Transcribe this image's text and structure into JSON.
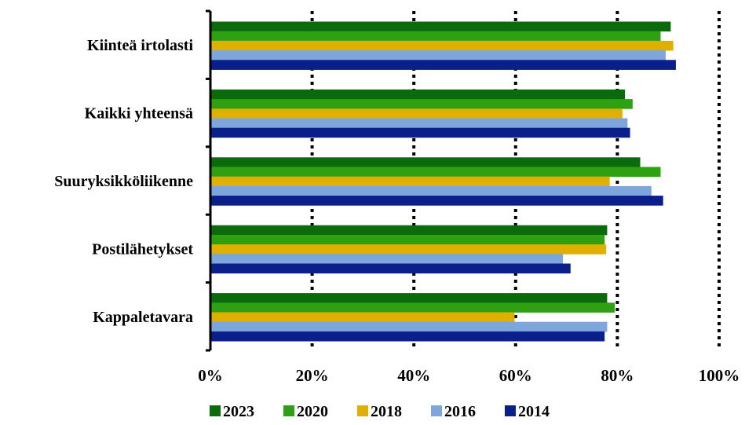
{
  "chart_data": {
    "type": "bar",
    "orientation": "horizontal",
    "categories": [
      "Kiinteä irtolasti",
      "Kaikki yhteensä",
      "Suuryksikköliikenne",
      "Postilähetykset",
      "Kappaletavara"
    ],
    "series": [
      {
        "name": "2023",
        "color": "#0b6a0b",
        "values": [
          90.5,
          81.5,
          84.5,
          78.0,
          78.0
        ]
      },
      {
        "name": "2020",
        "color": "#2ea012",
        "values": [
          88.5,
          83.0,
          88.5,
          77.5,
          79.5
        ]
      },
      {
        "name": "2018",
        "color": "#e0b000",
        "values": [
          91.0,
          81.0,
          78.5,
          77.8,
          59.8
        ]
      },
      {
        "name": "2016",
        "color": "#7ea6dc",
        "values": [
          89.5,
          82.0,
          86.7,
          69.3,
          78.0
        ]
      },
      {
        "name": "2014",
        "color": "#0b1f8a",
        "values": [
          91.5,
          82.5,
          89.0,
          70.8,
          77.5
        ]
      }
    ],
    "xlim": [
      0,
      100
    ],
    "xticks": [
      "0%",
      "20%",
      "40%",
      "60%",
      "80%",
      "100%"
    ],
    "grid": "vertical-dotted",
    "legend": "bottom"
  }
}
